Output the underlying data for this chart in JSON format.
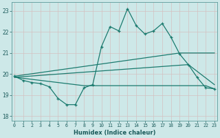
{
  "xlabel": "Humidex (Indice chaleur)",
  "bg_color": "#cde8e8",
  "grid_color": "#b8d8d8",
  "line_color": "#1a7a6e",
  "x_ticks": [
    0,
    1,
    2,
    3,
    4,
    5,
    6,
    7,
    8,
    9,
    10,
    11,
    12,
    13,
    14,
    15,
    16,
    17,
    18,
    19,
    20,
    21,
    22,
    23
  ],
  "ylim": [
    17.8,
    23.4
  ],
  "yticks": [
    18,
    19,
    20,
    21,
    22,
    23
  ],
  "xlim": [
    -0.3,
    23.3
  ],
  "series1_x": [
    0,
    1,
    2,
    3,
    4,
    5,
    6,
    7,
    8,
    9,
    10,
    11,
    12,
    13,
    14,
    15,
    16,
    17,
    18,
    19,
    20,
    21,
    22,
    23
  ],
  "series1_y": [
    19.9,
    19.7,
    19.6,
    19.55,
    19.4,
    18.85,
    18.55,
    18.55,
    19.35,
    19.5,
    21.3,
    22.25,
    22.05,
    23.1,
    22.3,
    21.9,
    22.05,
    22.4,
    21.75,
    20.95,
    20.45,
    19.85,
    19.35,
    19.3
  ],
  "line2_x": [
    0,
    19,
    23
  ],
  "line2_y": [
    19.9,
    21.0,
    21.0
  ],
  "line3_x": [
    0,
    20,
    23
  ],
  "line3_y": [
    19.85,
    20.45,
    19.5
  ],
  "line4_x": [
    0,
    8,
    22,
    23
  ],
  "line4_y": [
    19.85,
    19.45,
    19.45,
    19.3
  ]
}
